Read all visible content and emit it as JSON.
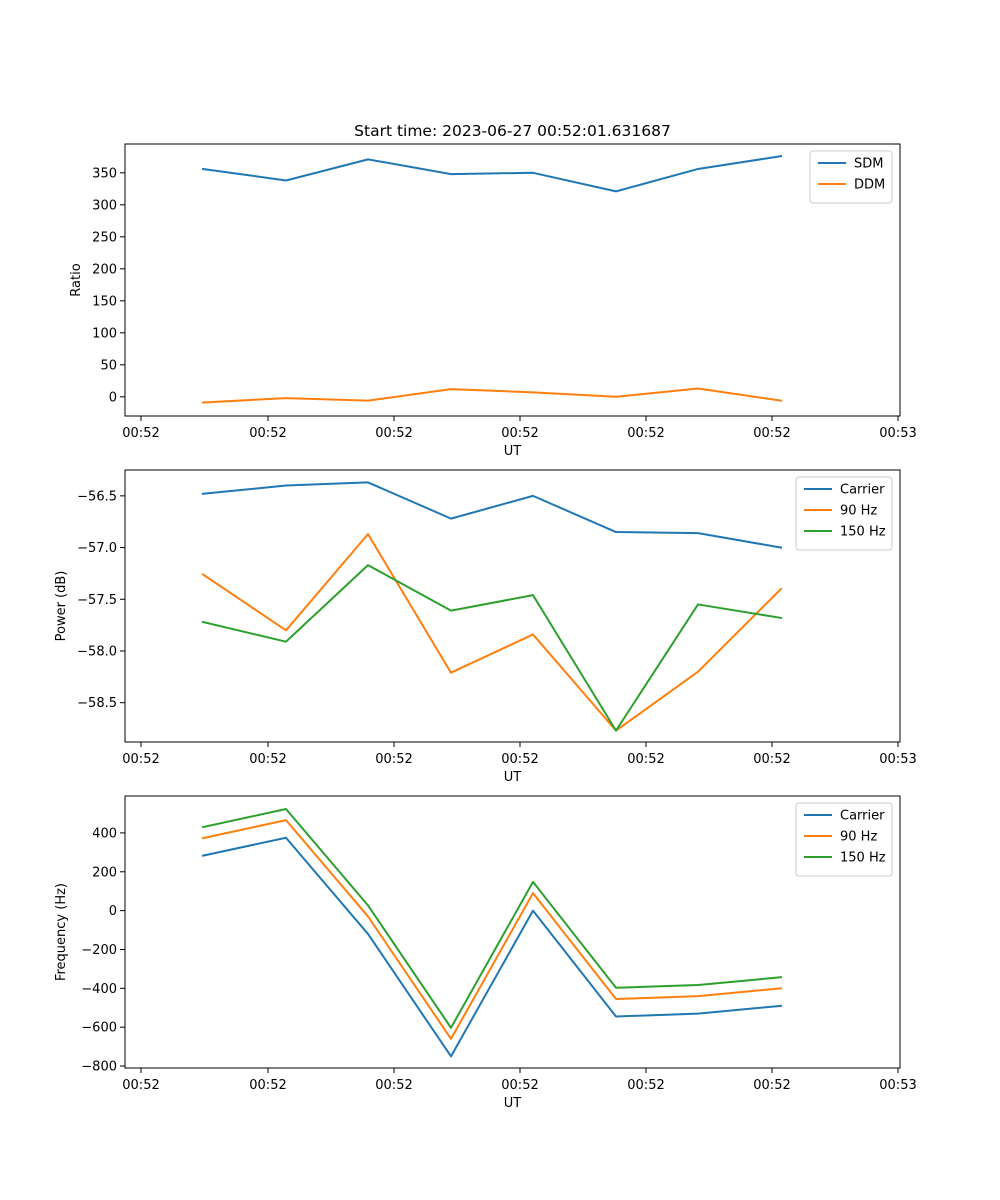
{
  "chart_data": [
    {
      "type": "line",
      "title": "Start time: 2023-06-27 00:52:01.631687",
      "xlabel": "UT",
      "ylabel": "Ratio",
      "x_tick_labels": [
        "00:52",
        "00:52",
        "00:52",
        "00:52",
        "00:52",
        "00:52",
        "00:53"
      ],
      "ylim": [
        -30,
        395
      ],
      "y_ticks": [
        0,
        50,
        100,
        150,
        200,
        250,
        300,
        350
      ],
      "legend_position": "top-right",
      "grid": false,
      "series": [
        {
          "name": "SDM",
          "color": "#1f77b4",
          "values": [
            356,
            338,
            371,
            348,
            350,
            321,
            356,
            376
          ]
        },
        {
          "name": "DDM",
          "color": "#ff7f0e",
          "values": [
            -9,
            -2,
            -6,
            12,
            7,
            0,
            13,
            -6
          ]
        }
      ]
    },
    {
      "type": "line",
      "title": "",
      "xlabel": "UT",
      "ylabel": "Power (dB)",
      "x_tick_labels": [
        "00:52",
        "00:52",
        "00:52",
        "00:52",
        "00:52",
        "00:52",
        "00:53"
      ],
      "ylim": [
        -58.88,
        -56.25
      ],
      "y_ticks": [
        -56.5,
        -57.0,
        -57.5,
        -58.0,
        -58.5
      ],
      "y_tick_labels": [
        "−56.5",
        "−57.0",
        "−57.5",
        "−58.0",
        "−58.5"
      ],
      "legend_position": "top-right",
      "grid": false,
      "series": [
        {
          "name": "Carrier",
          "color": "#1f77b4",
          "values": [
            -56.48,
            -56.4,
            -56.37,
            -56.72,
            -56.5,
            -56.85,
            -56.86,
            -57.0
          ]
        },
        {
          "name": "90 Hz",
          "color": "#ff7f0e",
          "values": [
            -57.26,
            -57.8,
            -56.87,
            -58.21,
            -57.84,
            -58.77,
            -58.2,
            -57.4
          ]
        },
        {
          "name": "150 Hz",
          "color": "#2ca02c",
          "values": [
            -57.72,
            -57.91,
            -57.17,
            -57.61,
            -57.46,
            -58.77,
            -57.55,
            -57.68
          ]
        }
      ]
    },
    {
      "type": "line",
      "title": "",
      "xlabel": "UT",
      "ylabel": "Frequency (Hz)",
      "x_tick_labels": [
        "00:52",
        "00:52",
        "00:52",
        "00:52",
        "00:52",
        "00:52",
        "00:53"
      ],
      "ylim": [
        -810,
        590
      ],
      "y_ticks": [
        400,
        200,
        0,
        -200,
        -400,
        -600,
        -800
      ],
      "y_tick_labels": [
        "400",
        "200",
        "0",
        "−200",
        "−400",
        "−600",
        "−800"
      ],
      "legend_position": "top-right",
      "grid": false,
      "series": [
        {
          "name": "Carrier",
          "color": "#1f77b4",
          "values": [
            283,
            375,
            -120,
            -750,
            0,
            -545,
            -530,
            -490
          ]
        },
        {
          "name": "90 Hz",
          "color": "#ff7f0e",
          "values": [
            373,
            466,
            -30,
            -660,
            90,
            -455,
            -440,
            -400
          ]
        },
        {
          "name": "150 Hz",
          "color": "#2ca02c",
          "values": [
            430,
            523,
            27,
            -603,
            148,
            -397,
            -383,
            -343
          ]
        }
      ]
    }
  ]
}
